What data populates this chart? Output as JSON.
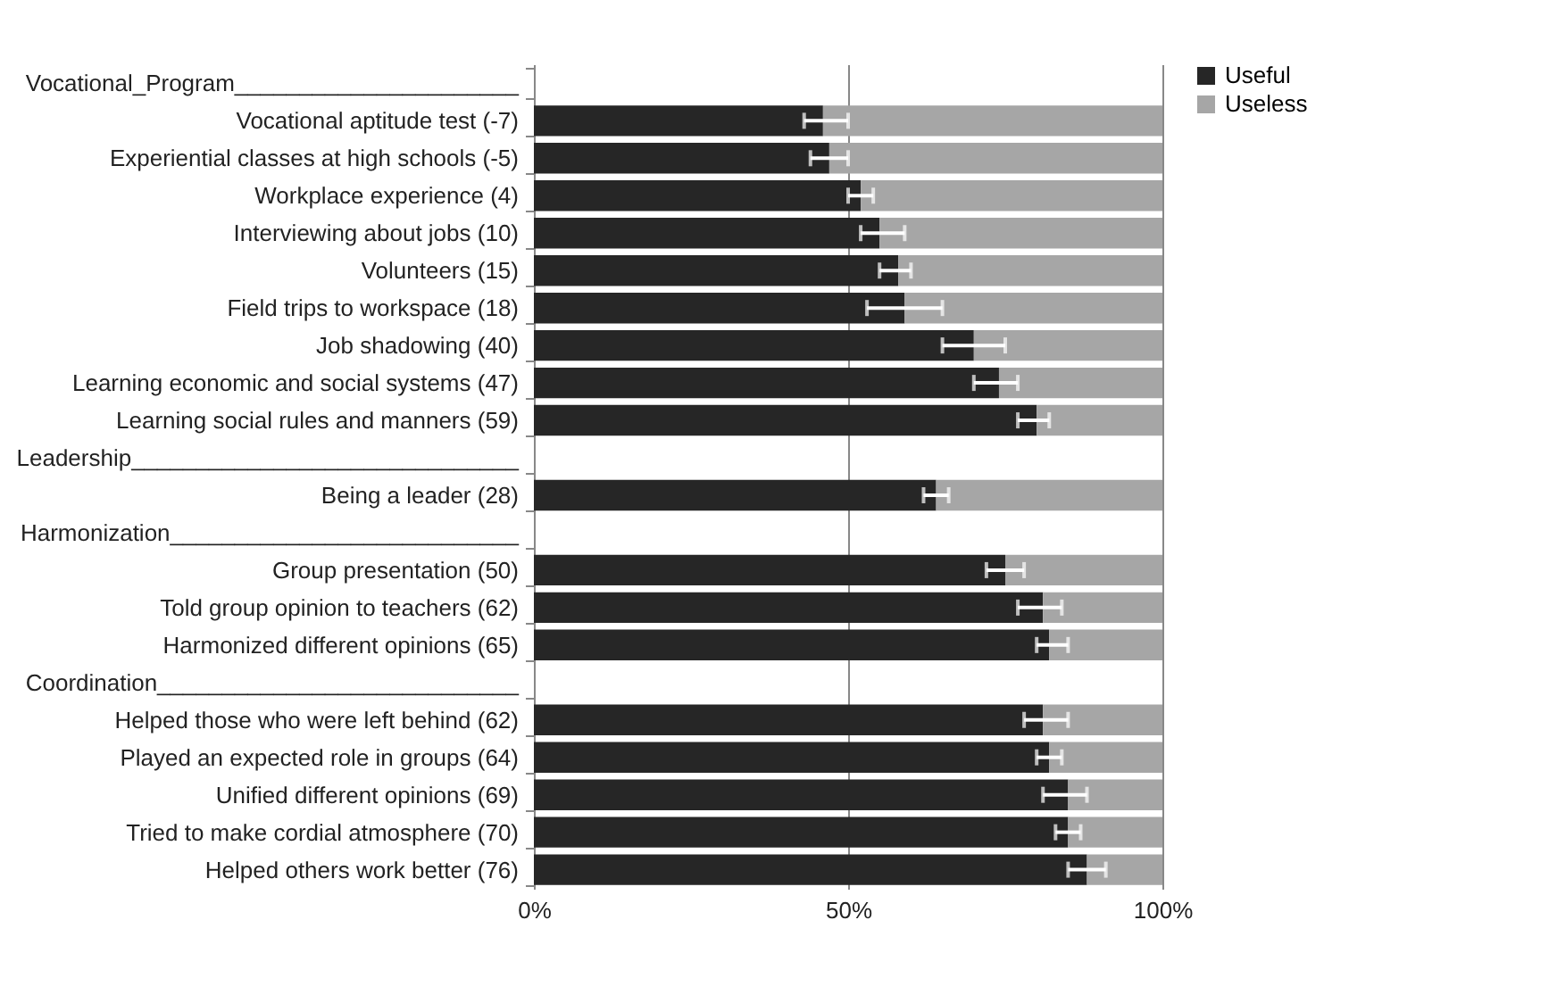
{
  "chart_data": {
    "type": "bar",
    "orientation": "horizontal",
    "stacked": true,
    "categories": [
      "Vocational_Program______________________",
      "Vocational aptitude test  (-7)",
      "Experiential classes at high schools (-5)",
      "Workplace experience  (4)",
      "Interviewing about jobs (10)",
      "Volunteers (15)",
      "Field trips to workspace (18)",
      "Job shadowing (40)",
      "Learning economic and social systems (47)",
      "Learning social rules and manners (59)",
      "Leadership______________________________",
      "Being a leader (28)",
      "Harmonization___________________________",
      "Group presentation (50)",
      "Told group opinion to teachers (62)",
      "Harmonized  different opinions (65)",
      "Coordination____________________________",
      "Helped those who were left behind (62)",
      "Played an expected role in groups  (64)",
      "Unified different opinions (69)",
      "Tried to make cordial atmosphere (70)",
      "Helped others work better (76)"
    ],
    "series": [
      {
        "name": "Useful",
        "color": "#262626",
        "values": [
          null,
          46,
          47,
          52,
          55,
          58,
          59,
          70,
          74,
          80,
          null,
          64,
          null,
          75,
          81,
          82,
          null,
          81,
          82,
          85,
          85,
          88
        ],
        "errors": [
          null,
          [
            43,
            50
          ],
          [
            44,
            50
          ],
          [
            50,
            54
          ],
          [
            52,
            59
          ],
          [
            55,
            60
          ],
          [
            53,
            65
          ],
          [
            65,
            75
          ],
          [
            70,
            77
          ],
          [
            77,
            82
          ],
          null,
          [
            62,
            66
          ],
          null,
          [
            72,
            78
          ],
          [
            77,
            84
          ],
          [
            80,
            85
          ],
          null,
          [
            78,
            85
          ],
          [
            80,
            84
          ],
          [
            81,
            88
          ],
          [
            83,
            87
          ],
          [
            85,
            91
          ]
        ]
      },
      {
        "name": "Useless",
        "color": "#a6a6a6",
        "values": [
          null,
          54,
          53,
          48,
          45,
          42,
          41,
          30,
          26,
          20,
          null,
          36,
          null,
          25,
          19,
          18,
          null,
          19,
          18,
          15,
          15,
          12
        ]
      }
    ],
    "xlim": [
      0,
      100
    ],
    "xticks": [
      {
        "value": 0,
        "label": "0%"
      },
      {
        "value": 50,
        "label": "50%"
      },
      {
        "value": 100,
        "label": "100%"
      }
    ],
    "grid": "x",
    "legend": "right"
  }
}
